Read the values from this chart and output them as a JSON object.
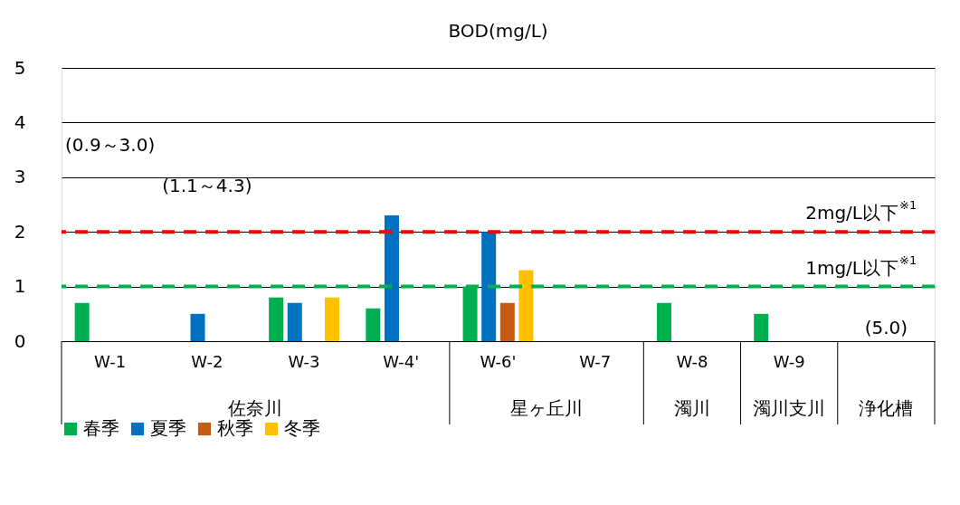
{
  "chart_data": {
    "type": "bar",
    "title": "BOD(mg/L)",
    "categories": [
      "W-1",
      "W-2",
      "W-3",
      "W-4'",
      "W-6'",
      "W-7",
      "W-8",
      "W-9",
      null
    ],
    "series": [
      {
        "name": "春季",
        "color": "#00b050",
        "values": [
          0.7,
          null,
          0.8,
          0.6,
          1.0,
          null,
          0.7,
          0.5,
          null
        ]
      },
      {
        "name": "夏季",
        "color": "#0070c0",
        "values": [
          null,
          0.5,
          0.7,
          2.3,
          2.0,
          null,
          null,
          null,
          null
        ]
      },
      {
        "name": "秋季",
        "color": "#c55a11",
        "values": [
          null,
          null,
          null,
          null,
          0.7,
          null,
          null,
          null,
          null
        ]
      },
      {
        "name": "冬季",
        "color": "#ffc000",
        "values": [
          null,
          null,
          0.8,
          null,
          1.3,
          null,
          null,
          null,
          null
        ]
      }
    ],
    "ylim": [
      0,
      5
    ],
    "yticks": [
      0,
      1,
      2,
      3,
      4,
      5
    ],
    "grid": "y",
    "legend": "bottom",
    "ref_lines": [
      {
        "axis": "y",
        "value": 2,
        "label": "2mg/L以下$^{※1}$",
        "color": "#ff0000",
        "line_style": "dashed"
      },
      {
        "axis": "y",
        "value": 1,
        "label": "1mg/L以下$^{※1}$",
        "color": "#00b050",
        "line_style": "dashed"
      }
    ],
    "annotations": [
      "(0.9～3.0)",
      "(1.1～4.3)",
      "(5.0)",
      "佐奈川",
      "星ヶ丘川",
      "濁川",
      "濁川支川",
      "浄化槽"
    ]
  }
}
